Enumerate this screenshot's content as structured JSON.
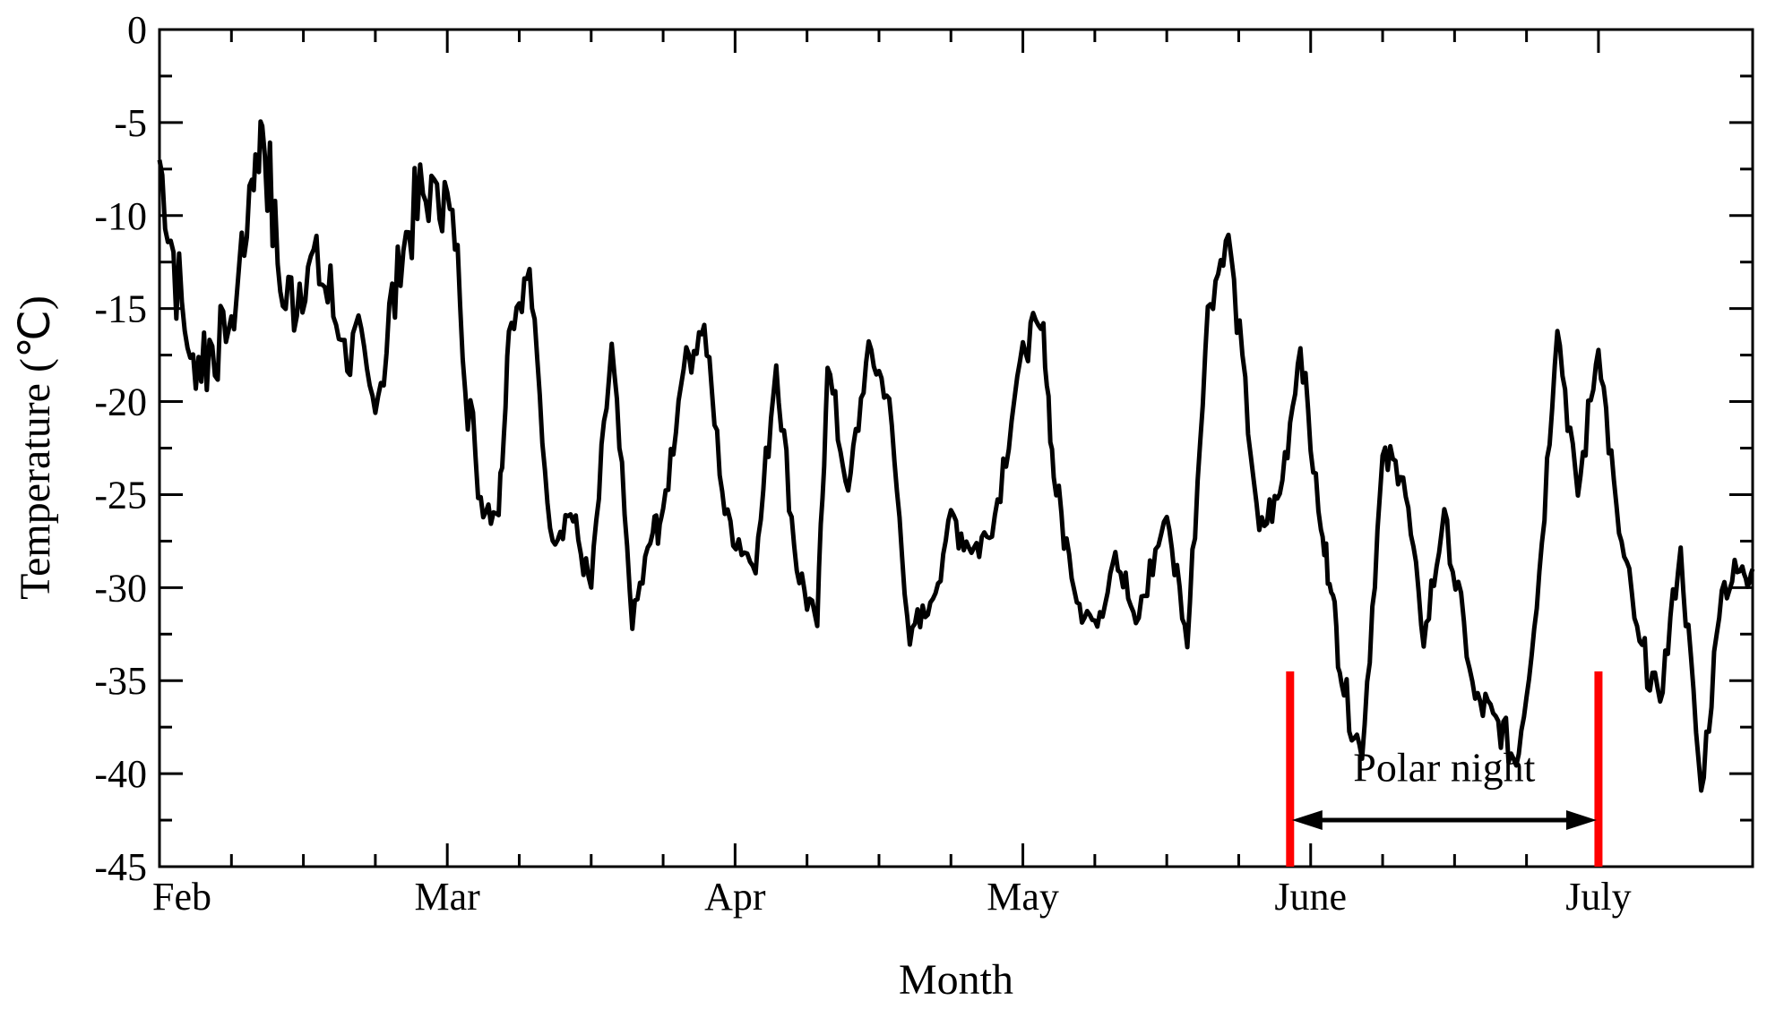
{
  "chart_data": {
    "type": "line",
    "title": "",
    "xlabel": "Month",
    "ylabel": "Temperature (℃)",
    "ylim": [
      -45,
      0
    ],
    "yticks": [
      0,
      -5,
      -10,
      -15,
      -20,
      -25,
      -30,
      -35,
      -40,
      -45
    ],
    "xlim": [
      "2014-02-01",
      "2014-07-06"
    ],
    "xticks": [
      {
        "label": "Feb",
        "date": "2014-02-01"
      },
      {
        "label": "Mar",
        "date": "2014-03-01"
      },
      {
        "label": "Apr",
        "date": "2014-03-29"
      },
      {
        "label": "May",
        "date": "2014-04-26"
      },
      {
        "label": "June",
        "date": "2014-05-24"
      },
      {
        "label": "July",
        "date": "2014-06-21"
      }
    ],
    "grid": false,
    "legend": "none",
    "series": [
      {
        "name": "",
        "color": "#000000",
        "x": [
          "2014-02-01",
          "2014-02-04",
          "2014-02-08",
          "2014-02-10",
          "2014-02-11",
          "2014-02-13",
          "2014-02-16",
          "2014-02-19",
          "2014-02-22",
          "2014-02-25",
          "2014-02-28",
          "2014-03-02",
          "2014-03-04",
          "2014-03-06",
          "2014-03-07",
          "2014-03-09",
          "2014-03-11",
          "2014-03-13",
          "2014-03-15",
          "2014-03-17",
          "2014-03-19",
          "2014-03-21",
          "2014-03-22",
          "2014-03-24",
          "2014-03-26",
          "2014-03-28",
          "2014-03-31",
          "2014-04-02",
          "2014-04-04",
          "2014-04-06",
          "2014-04-07",
          "2014-04-09",
          "2014-04-11",
          "2014-04-13",
          "2014-04-15",
          "2014-04-17",
          "2014-04-19",
          "2014-04-21",
          "2014-04-23",
          "2014-04-26",
          "2014-04-28",
          "2014-04-29",
          "2014-05-01",
          "2014-05-03",
          "2014-05-05",
          "2014-05-07",
          "2014-05-10",
          "2014-05-12",
          "2014-05-14",
          "2014-05-16",
          "2014-05-19",
          "2014-05-21",
          "2014-05-23",
          "2014-05-25",
          "2014-05-26",
          "2014-05-27",
          "2014-05-29",
          "2014-05-31",
          "2014-06-02",
          "2014-06-04",
          "2014-06-06",
          "2014-06-09",
          "2014-06-11",
          "2014-06-13",
          "2014-06-15",
          "2014-06-17",
          "2014-06-19",
          "2014-06-21",
          "2014-06-23",
          "2014-06-25",
          "2014-06-27",
          "2014-06-29",
          "2014-07-01",
          "2014-07-03",
          "2014-07-05",
          "2014-07-06"
        ],
        "y": [
          -7,
          -18,
          -16,
          -8,
          -5,
          -15,
          -12,
          -17,
          -20,
          -11,
          -8,
          -12,
          -25,
          -26,
          -16,
          -13,
          -27,
          -26,
          -30,
          -17,
          -32,
          -27,
          -26,
          -18,
          -16,
          -26,
          -29,
          -18,
          -29,
          -32,
          -18,
          -25,
          -17,
          -20,
          -33,
          -31,
          -26,
          -28,
          -27,
          -17,
          -16,
          -24,
          -30,
          -32,
          -28,
          -32,
          -26,
          -33,
          -15,
          -11,
          -27,
          -25,
          -17,
          -27,
          -30,
          -35,
          -39,
          -23,
          -24,
          -33,
          -26,
          -36,
          -37,
          -39.5,
          -31,
          -16,
          -25,
          -17,
          -27,
          -33,
          -36,
          -28,
          -41,
          -30,
          -29,
          -29
        ]
      }
    ],
    "annotations": [
      {
        "text": "Polar night",
        "start": "2014-05-22",
        "end": "2014-06-21",
        "color": "#ff0000"
      }
    ]
  }
}
